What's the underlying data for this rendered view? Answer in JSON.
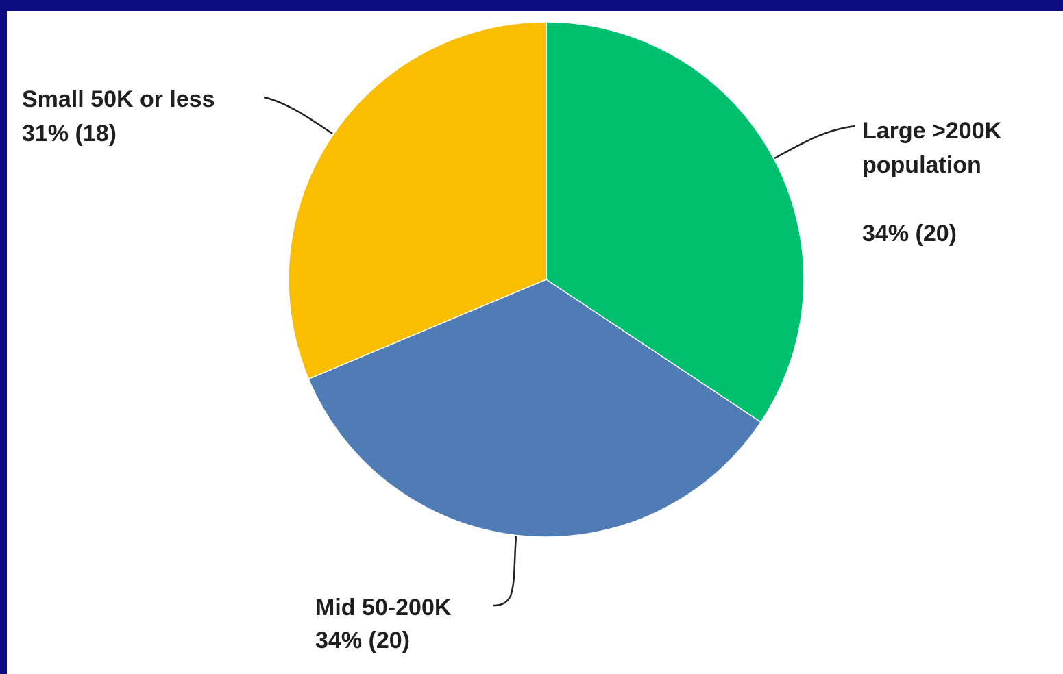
{
  "chart_data": {
    "type": "pie",
    "title": "",
    "slices": [
      {
        "label": "Large >200K population",
        "percent_label": "34% (20)",
        "percent": 34,
        "count": 20,
        "color": "#00bf6f"
      },
      {
        "label": "Mid 50-200K",
        "percent_label": "34% (20)",
        "percent": 34,
        "count": 20,
        "color": "#507cb6"
      },
      {
        "label": "Small 50K or less",
        "percent_label": "31% (18)",
        "percent": 31,
        "count": 18,
        "color": "#f9be00"
      }
    ],
    "labels": {
      "large_line1": "Large >200K",
      "large_line2": "population",
      "large_value": "34% (20)",
      "mid_line1": "Mid 50-200K",
      "mid_value": "34% (20)",
      "small_line1": "Small 50K or less",
      "small_value": "31% (18)"
    }
  }
}
